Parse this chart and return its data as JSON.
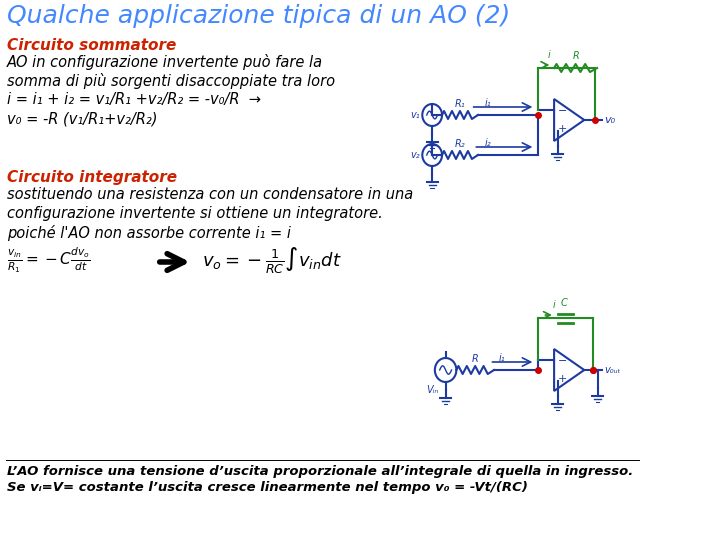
{
  "title": "Qualche applicazione tipica di un AO (2)",
  "title_color": "#4488FF",
  "title_fontsize": 18,
  "bg_color": "#FFFFFF",
  "section1_header": "Circuito sommatore",
  "section1_header_color": "#CC2200",
  "section1_header_fontsize": 11,
  "section2_header": "Circuito integratore",
  "section2_header_color": "#CC2200",
  "section2_header_fontsize": 11,
  "text_color": "#000000",
  "text_fontsize": 10.5,
  "footer_fontsize": 9.5,
  "circuit_color_green": "#228B22",
  "circuit_color_blue": "#1C3AA0",
  "circuit_color_red": "#CC0000"
}
